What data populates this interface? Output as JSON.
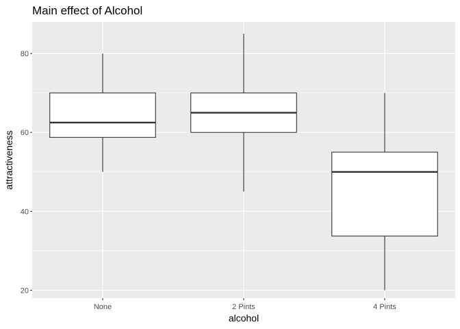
{
  "chart_data": {
    "type": "box",
    "title": "Main effect of Alcohol",
    "xlabel": "alcohol",
    "ylabel": "attractiveness",
    "categories": [
      "None",
      "2 Pints",
      "4 Pints"
    ],
    "boxes": [
      {
        "category": "None",
        "whisker_low": 50,
        "q1": 58.75,
        "median": 62.5,
        "q3": 70,
        "whisker_high": 80
      },
      {
        "category": "2 Pints",
        "whisker_low": 45,
        "q1": 60,
        "median": 65,
        "q3": 70,
        "whisker_high": 85
      },
      {
        "category": "4 Pints",
        "whisker_low": 20,
        "q1": 33.75,
        "median": 50,
        "q3": 55,
        "whisker_high": 70
      }
    ],
    "ylim": [
      18,
      88
    ],
    "yticks": [
      20,
      40,
      60,
      80
    ],
    "y_minor_ticks": [
      30,
      50,
      70
    ],
    "grid": true,
    "legend": "none",
    "colors": {
      "panel_background": "#ebebeb",
      "grid": "#ffffff",
      "box_fill": "#ffffff",
      "box_line": "#333333"
    }
  }
}
